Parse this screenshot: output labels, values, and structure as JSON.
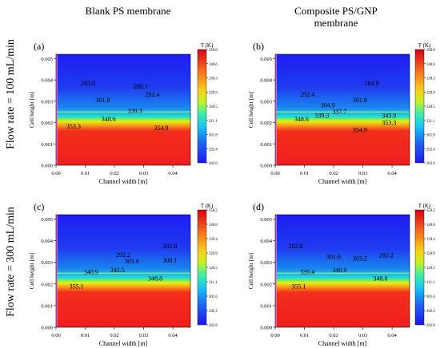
{
  "column_titles": [
    "Blank PS membrane",
    "Composite PS/GNP\nmembrane"
  ],
  "row_labels": [
    "Flow rate = 100 mL/min",
    "Flow rate = 300 mL/min"
  ],
  "chart_data": [
    {
      "type": "heatmap",
      "panel": "(a)",
      "xlabel": "Channel width [m]",
      "ylabel": "Cell height [m]",
      "xlim": [
        0,
        0.046
      ],
      "ylim": [
        0,
        0.0052
      ],
      "xticks": [
        "0.00",
        "0.01",
        "0.02",
        "0.03",
        "0.04"
      ],
      "yticks": [
        "0.000",
        "0.001",
        "0.002",
        "0.003",
        "0.004",
        "0.005"
      ],
      "interface_height": 0.0025,
      "colorbar": {
        "title": "T (K)",
        "ticks": [
          "358.0",
          "348.6",
          "339.3",
          "329.9",
          "320.5",
          "311.1",
          "301.8",
          "292.4",
          "283.0"
        ]
      },
      "annotations": [
        {
          "x": 0.011,
          "y": 0.00375,
          "text": "283.0"
        },
        {
          "x": 0.029,
          "y": 0.0036,
          "text": "286.1"
        },
        {
          "x": 0.033,
          "y": 0.00322,
          "text": "292.4"
        },
        {
          "x": 0.016,
          "y": 0.00295,
          "text": "301.8"
        },
        {
          "x": 0.027,
          "y": 0.00245,
          "text": "339.3"
        },
        {
          "x": 0.018,
          "y": 0.00205,
          "text": "348.6"
        },
        {
          "x": 0.006,
          "y": 0.00172,
          "text": "353.3"
        },
        {
          "x": 0.036,
          "y": 0.00165,
          "text": "354.9"
        }
      ]
    },
    {
      "type": "heatmap",
      "panel": "(b)",
      "xlabel": "Channel width [m]",
      "ylabel": "Cell height [m]",
      "xlim": [
        0,
        0.046
      ],
      "ylim": [
        0,
        0.0052
      ],
      "xticks": [
        "0.00",
        "0.01",
        "0.02",
        "0.03",
        "0.04"
      ],
      "yticks": [
        "0.000",
        "0.001",
        "0.002",
        "0.003",
        "0.004",
        "0.005"
      ],
      "interface_height": 0.0025,
      "colorbar": {
        "title": "T (K)",
        "ticks": [
          "358.0",
          "348.6",
          "339.3",
          "329.9",
          "320.5",
          "311.1",
          "301.8",
          "292.4",
          "283.0"
        ]
      },
      "annotations": [
        {
          "x": 0.033,
          "y": 0.00375,
          "text": "284.9"
        },
        {
          "x": 0.011,
          "y": 0.00322,
          "text": "292.4"
        },
        {
          "x": 0.018,
          "y": 0.00272,
          "text": "304.9"
        },
        {
          "x": 0.029,
          "y": 0.00295,
          "text": "301.8"
        },
        {
          "x": 0.022,
          "y": 0.00242,
          "text": "337.7"
        },
        {
          "x": 0.016,
          "y": 0.00222,
          "text": "339.3"
        },
        {
          "x": 0.009,
          "y": 0.00205,
          "text": "348.6"
        },
        {
          "x": 0.039,
          "y": 0.00222,
          "text": "343.9"
        },
        {
          "x": 0.039,
          "y": 0.00188,
          "text": "353.3"
        },
        {
          "x": 0.029,
          "y": 0.00155,
          "text": "354.9"
        }
      ]
    },
    {
      "type": "heatmap",
      "panel": "(c)",
      "xlabel": "Channel width [m]",
      "ylabel": "Cell height [m]",
      "xlim": [
        0,
        0.046
      ],
      "ylim": [
        0,
        0.0052
      ],
      "xticks": [
        "0.00",
        "0.01",
        "0.02",
        "0.03",
        "0.04"
      ],
      "yticks": [
        "0.000",
        "0.001",
        "0.002",
        "0.003",
        "0.004",
        "0.005"
      ],
      "interface_height": 0.0025,
      "colorbar": {
        "title": "T (K)",
        "ticks": [
          "358.2",
          "348.8",
          "339.4",
          "329.9",
          "320.5",
          "311.1",
          "301.6",
          "292.2",
          "282.8"
        ]
      },
      "annotations": [
        {
          "x": 0.039,
          "y": 0.00365,
          "text": "282.8"
        },
        {
          "x": 0.023,
          "y": 0.00325,
          "text": "292.2"
        },
        {
          "x": 0.026,
          "y": 0.00295,
          "text": "301.6"
        },
        {
          "x": 0.039,
          "y": 0.00298,
          "text": "300.1"
        },
        {
          "x": 0.012,
          "y": 0.00245,
          "text": "340.9"
        },
        {
          "x": 0.021,
          "y": 0.00255,
          "text": "342.5"
        },
        {
          "x": 0.034,
          "y": 0.00215,
          "text": "348.8"
        },
        {
          "x": 0.007,
          "y": 0.00178,
          "text": "355.1"
        }
      ]
    },
    {
      "type": "heatmap",
      "panel": "(d)",
      "xlabel": "Channel width [m]",
      "ylabel": "Cell height [m]",
      "xlim": [
        0,
        0.046
      ],
      "ylim": [
        0,
        0.0052
      ],
      "xticks": [
        "0.00",
        "0.01",
        "0.02",
        "0.03",
        "0.04"
      ],
      "yticks": [
        "0.000",
        "0.001",
        "0.002",
        "0.003",
        "0.004",
        "0.005"
      ],
      "interface_height": 0.0025,
      "colorbar": {
        "title": "T (K)",
        "ticks": [
          "358.2",
          "348.8",
          "339.4",
          "329.9",
          "320.5",
          "311.1",
          "301.6",
          "292.2",
          "282.8"
        ]
      },
      "annotations": [
        {
          "x": 0.007,
          "y": 0.00365,
          "text": "282.8"
        },
        {
          "x": 0.02,
          "y": 0.00315,
          "text": "301.6"
        },
        {
          "x": 0.029,
          "y": 0.00308,
          "text": "303.2"
        },
        {
          "x": 0.038,
          "y": 0.00322,
          "text": "292.2"
        },
        {
          "x": 0.011,
          "y": 0.00245,
          "text": "339.4"
        },
        {
          "x": 0.022,
          "y": 0.00255,
          "text": "340.9"
        },
        {
          "x": 0.036,
          "y": 0.00215,
          "text": "348.8"
        },
        {
          "x": 0.008,
          "y": 0.00178,
          "text": "355.1"
        }
      ]
    }
  ]
}
